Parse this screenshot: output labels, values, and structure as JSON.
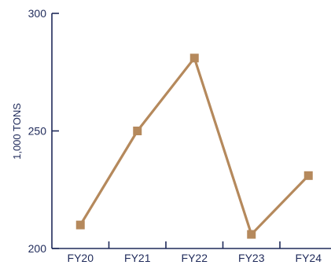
{
  "chart_data": {
    "type": "line",
    "title": "",
    "xlabel": "",
    "ylabel": "1,000 TONS",
    "categories": [
      "FY20",
      "FY21",
      "FY22",
      "FY23",
      "FY24"
    ],
    "series": [
      {
        "values": [
          210,
          250,
          281,
          206,
          231
        ]
      }
    ],
    "ylim": [
      200,
      300
    ],
    "yticks": [
      200,
      250,
      300
    ],
    "grid": false,
    "legend": "none"
  },
  "colors": {
    "axis": "#1f2a5a",
    "line": "#b5895c",
    "marker": "#b5895c",
    "text": "#1f2a5a"
  }
}
